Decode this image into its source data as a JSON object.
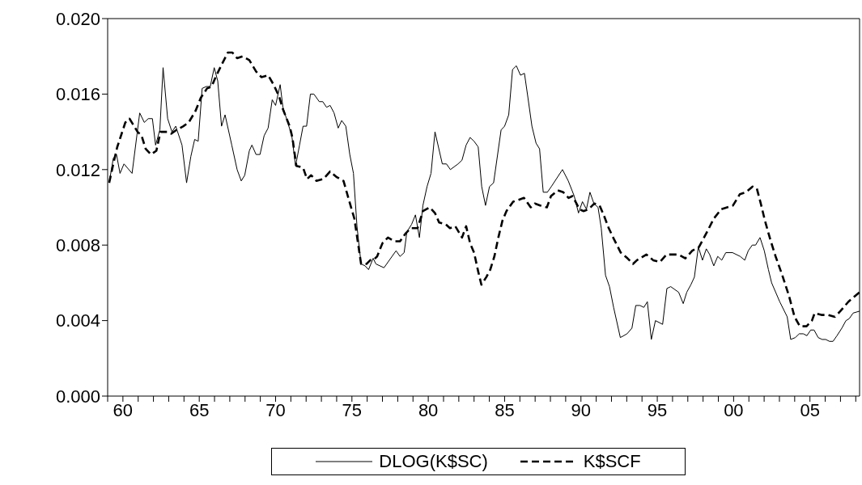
{
  "chart_data": {
    "type": "line",
    "xlim": [
      1959,
      2008.25
    ],
    "xticks": [
      {
        "value": 1959,
        "label": null
      },
      {
        "value": 1960,
        "label": "60"
      },
      {
        "value": 1961,
        "label": null
      },
      {
        "value": 1962,
        "label": null
      },
      {
        "value": 1963,
        "label": null
      },
      {
        "value": 1964,
        "label": null
      },
      {
        "value": 1965,
        "label": "65"
      },
      {
        "value": 1966,
        "label": null
      },
      {
        "value": 1967,
        "label": null
      },
      {
        "value": 1968,
        "label": null
      },
      {
        "value": 1969,
        "label": null
      },
      {
        "value": 1970,
        "label": "70"
      },
      {
        "value": 1971,
        "label": null
      },
      {
        "value": 1972,
        "label": null
      },
      {
        "value": 1973,
        "label": null
      },
      {
        "value": 1974,
        "label": null
      },
      {
        "value": 1975,
        "label": "75"
      },
      {
        "value": 1976,
        "label": null
      },
      {
        "value": 1977,
        "label": null
      },
      {
        "value": 1978,
        "label": null
      },
      {
        "value": 1979,
        "label": null
      },
      {
        "value": 1980,
        "label": "80"
      },
      {
        "value": 1981,
        "label": null
      },
      {
        "value": 1982,
        "label": null
      },
      {
        "value": 1983,
        "label": null
      },
      {
        "value": 1984,
        "label": null
      },
      {
        "value": 1985,
        "label": "85"
      },
      {
        "value": 1986,
        "label": null
      },
      {
        "value": 1987,
        "label": null
      },
      {
        "value": 1988,
        "label": null
      },
      {
        "value": 1989,
        "label": null
      },
      {
        "value": 1990,
        "label": "90"
      },
      {
        "value": 1991,
        "label": null
      },
      {
        "value": 1992,
        "label": null
      },
      {
        "value": 1993,
        "label": null
      },
      {
        "value": 1994,
        "label": null
      },
      {
        "value": 1995,
        "label": "95"
      },
      {
        "value": 1996,
        "label": null
      },
      {
        "value": 1997,
        "label": null
      },
      {
        "value": 1998,
        "label": null
      },
      {
        "value": 1999,
        "label": null
      },
      {
        "value": 2000,
        "label": "00"
      },
      {
        "value": 2001,
        "label": null
      },
      {
        "value": 2002,
        "label": null
      },
      {
        "value": 2003,
        "label": null
      },
      {
        "value": 2004,
        "label": null
      },
      {
        "value": 2005,
        "label": "05"
      },
      {
        "value": 2006,
        "label": null
      },
      {
        "value": 2007,
        "label": null
      },
      {
        "value": 2008,
        "label": null
      }
    ],
    "ylim": [
      0,
      0.02
    ],
    "yticks": [
      {
        "value": 0,
        "label": "0.000"
      },
      {
        "value": 0.004,
        "label": "0.004"
      },
      {
        "value": 0.008,
        "label": "0.008"
      },
      {
        "value": 0.012,
        "label": "0.012"
      },
      {
        "value": 0.016,
        "label": "0.016"
      },
      {
        "value": 0.02,
        "label": "0.020"
      }
    ],
    "legend": "bottom",
    "marker": "none",
    "series": [
      {
        "name": "DLOG(K$SC)",
        "color": "#000000",
        "line_style": "solid",
        "x": [
          1959.1,
          1959.37,
          1959.58,
          1959.81,
          1960.07,
          1960.6,
          1961.1,
          1961.4,
          1961.66,
          1961.93,
          1962.14,
          1962.42,
          1962.63,
          1962.93,
          1963.21,
          1963.46,
          1963.87,
          1964.17,
          1964.45,
          1964.7,
          1964.93,
          1965.19,
          1965.46,
          1965.72,
          1965.98,
          1966.21,
          1966.46,
          1966.69,
          1967.13,
          1967.48,
          1967.75,
          1967.98,
          1968.28,
          1968.45,
          1968.72,
          1968.98,
          1969.25,
          1969.51,
          1969.78,
          1970.0,
          1970.3,
          1970.48,
          1970.83,
          1971.06,
          1971.31,
          1971.57,
          1971.8,
          1972.03,
          1972.28,
          1972.51,
          1972.86,
          1973.09,
          1973.34,
          1973.57,
          1973.83,
          1974.1,
          1974.33,
          1974.6,
          1974.86,
          1975.1,
          1975.33,
          1975.6,
          1975.86,
          1976.09,
          1976.39,
          1976.57,
          1977.1,
          1977.89,
          1978.15,
          1978.42,
          1978.6,
          1978.91,
          1979.16,
          1979.42,
          1979.65,
          1979.92,
          1980.18,
          1980.44,
          1980.92,
          1981.19,
          1981.45,
          1981.95,
          1982.21,
          1982.48,
          1982.74,
          1983.0,
          1983.27,
          1983.5,
          1983.75,
          1984.01,
          1984.28,
          1984.77,
          1985.0,
          1985.27,
          1985.52,
          1985.77,
          1986.04,
          1986.3,
          1986.53,
          1986.79,
          1987.06,
          1987.29,
          1987.53,
          1987.8,
          1988.06,
          1988.79,
          1989.17,
          1989.56,
          1989.84,
          1990.1,
          1990.36,
          1990.59,
          1990.85,
          1991.12,
          1991.33,
          1991.61,
          1991.87,
          1992.14,
          1992.58,
          1993.02,
          1993.34,
          1993.59,
          1993.87,
          1994.12,
          1994.35,
          1994.61,
          1994.88,
          1995.35,
          1995.63,
          1995.88,
          1996.4,
          1996.7,
          1996.93,
          1997.2,
          1997.43,
          1997.69,
          1997.96,
          1998.21,
          1998.43,
          1998.7,
          1998.96,
          1999.22,
          1999.49,
          1999.93,
          2000.43,
          2000.73,
          2000.96,
          2001.22,
          2001.44,
          2001.73,
          2002.01,
          2002.28,
          2002.49,
          2003.02,
          2003.51,
          2003.74,
          2004.04,
          2004.3,
          2004.57,
          2004.8,
          2005.05,
          2005.27,
          2005.54,
          2005.8,
          2006.03,
          2006.28,
          2006.51,
          2006.77,
          2007.09,
          2007.36,
          2007.57,
          2007.83,
          2008.25
        ],
        "values": [
          0.0113,
          0.0126,
          0.0128,
          0.0118,
          0.0123,
          0.0118,
          0.015,
          0.0145,
          0.0147,
          0.0147,
          0.0133,
          0.0141,
          0.0174,
          0.0147,
          0.014,
          0.0143,
          0.0133,
          0.0113,
          0.0127,
          0.0136,
          0.0135,
          0.0163,
          0.0164,
          0.0164,
          0.0174,
          0.0167,
          0.0143,
          0.0149,
          0.0133,
          0.012,
          0.0114,
          0.0117,
          0.013,
          0.0133,
          0.0128,
          0.0128,
          0.0138,
          0.0142,
          0.0157,
          0.0154,
          0.0165,
          0.0153,
          0.0144,
          0.0138,
          0.0122,
          0.0133,
          0.0143,
          0.0143,
          0.016,
          0.016,
          0.0156,
          0.0156,
          0.0153,
          0.0154,
          0.015,
          0.0142,
          0.0146,
          0.0143,
          0.0128,
          0.0118,
          0.009,
          0.007,
          0.0069,
          0.0067,
          0.0073,
          0.007,
          0.0068,
          0.0077,
          0.0074,
          0.0076,
          0.0087,
          0.0091,
          0.0096,
          0.0084,
          0.0101,
          0.0111,
          0.0118,
          0.014,
          0.0123,
          0.0123,
          0.012,
          0.0123,
          0.0125,
          0.0133,
          0.0137,
          0.0135,
          0.0132,
          0.0111,
          0.0101,
          0.0111,
          0.0113,
          0.0141,
          0.0143,
          0.0149,
          0.0173,
          0.0175,
          0.017,
          0.0171,
          0.0158,
          0.0143,
          0.0134,
          0.0131,
          0.0108,
          0.0108,
          0.0111,
          0.012,
          0.0114,
          0.0106,
          0.0097,
          0.0103,
          0.0099,
          0.0108,
          0.0102,
          0.01,
          0.0089,
          0.0064,
          0.0058,
          0.0047,
          0.0031,
          0.0033,
          0.0036,
          0.0048,
          0.0048,
          0.0047,
          0.005,
          0.003,
          0.004,
          0.0038,
          0.0057,
          0.0058,
          0.0055,
          0.0049,
          0.0055,
          0.0059,
          0.0063,
          0.0079,
          0.0072,
          0.0078,
          0.0075,
          0.0069,
          0.0074,
          0.0072,
          0.0076,
          0.0076,
          0.0074,
          0.0072,
          0.0077,
          0.008,
          0.008,
          0.0084,
          0.0077,
          0.0067,
          0.006,
          0.005,
          0.0042,
          0.003,
          0.0031,
          0.0033,
          0.0033,
          0.0032,
          0.0035,
          0.0035,
          0.0031,
          0.003,
          0.003,
          0.0029,
          0.0029,
          0.0032,
          0.0036,
          0.004,
          0.0041,
          0.0044,
          0.0045
        ]
      },
      {
        "name": "K$SCF",
        "color": "#000000",
        "line_style": "dashed",
        "x": [
          1959.1,
          1959.37,
          1959.63,
          1960.16,
          1960.43,
          1960.96,
          1961.22,
          1961.49,
          1961.84,
          1962.19,
          1962.46,
          1962.9,
          1963.16,
          1963.51,
          1963.96,
          1964.31,
          1964.75,
          1965.1,
          1965.51,
          1965.81,
          1966.07,
          1966.43,
          1966.87,
          1967.17,
          1967.48,
          1967.84,
          1968.28,
          1968.72,
          1969.07,
          1969.51,
          1969.87,
          1970.22,
          1970.48,
          1970.92,
          1971.1,
          1971.36,
          1971.8,
          1972.06,
          1972.33,
          1972.68,
          1973.13,
          1973.57,
          1974.01,
          1974.45,
          1974.8,
          1975.16,
          1975.6,
          1975.95,
          1976.2,
          1976.39,
          1976.65,
          1977.0,
          1977.36,
          1977.8,
          1978.15,
          1978.5,
          1978.86,
          1979.3,
          1979.65,
          1980.1,
          1980.44,
          1980.71,
          1981.15,
          1981.42,
          1981.77,
          1982.21,
          1982.48,
          1982.74,
          1983.0,
          1983.27,
          1983.48,
          1983.8,
          1984.06,
          1984.33,
          1984.59,
          1984.86,
          1985.12,
          1985.56,
          1985.92,
          1986.27,
          1986.71,
          1986.98,
          1987.33,
          1987.77,
          1988.04,
          1988.48,
          1988.84,
          1989.19,
          1989.45,
          1989.9,
          1990.16,
          1990.51,
          1990.87,
          1991.22,
          1991.49,
          1991.82,
          1992.17,
          1992.61,
          1993.05,
          1993.41,
          1993.67,
          1994.29,
          1994.73,
          1995.17,
          1995.61,
          1995.96,
          1996.4,
          1996.84,
          1997.29,
          1997.73,
          1998.26,
          1998.7,
          1999.19,
          1999.58,
          1999.96,
          2000.41,
          2000.81,
          2001.25,
          2001.52,
          2001.78,
          2002.05,
          2002.4,
          2002.75,
          2003.19,
          2003.63,
          2003.99,
          2004.34,
          2004.78,
          2005.13,
          2005.31,
          2005.75,
          2006.19,
          2006.63,
          2006.99,
          2007.52,
          2008.25
        ],
        "values": [
          0.0113,
          0.0123,
          0.0132,
          0.0145,
          0.0147,
          0.014,
          0.0138,
          0.0131,
          0.0128,
          0.013,
          0.014,
          0.014,
          0.0139,
          0.0141,
          0.0143,
          0.0145,
          0.0151,
          0.0158,
          0.0163,
          0.0164,
          0.0169,
          0.0175,
          0.0182,
          0.0182,
          0.0179,
          0.018,
          0.0178,
          0.0172,
          0.0169,
          0.017,
          0.0165,
          0.0159,
          0.0152,
          0.0143,
          0.0137,
          0.0122,
          0.0121,
          0.0115,
          0.0117,
          0.0114,
          0.0115,
          0.0119,
          0.0116,
          0.0114,
          0.0104,
          0.0094,
          0.007,
          0.007,
          0.0072,
          0.0072,
          0.0074,
          0.0081,
          0.0084,
          0.0082,
          0.0082,
          0.0086,
          0.0089,
          0.0089,
          0.0098,
          0.01,
          0.0097,
          0.0092,
          0.0091,
          0.0089,
          0.009,
          0.0084,
          0.009,
          0.0081,
          0.0076,
          0.0066,
          0.0059,
          0.0063,
          0.0067,
          0.0074,
          0.0084,
          0.0093,
          0.0098,
          0.0103,
          0.0104,
          0.0105,
          0.01,
          0.0102,
          0.0101,
          0.01,
          0.0106,
          0.0109,
          0.0108,
          0.0105,
          0.0106,
          0.0099,
          0.0098,
          0.0099,
          0.0102,
          0.0101,
          0.0096,
          0.0089,
          0.0083,
          0.0076,
          0.0073,
          0.007,
          0.0072,
          0.0075,
          0.0072,
          0.0071,
          0.0075,
          0.0075,
          0.0075,
          0.0073,
          0.0077,
          0.0079,
          0.0087,
          0.0094,
          0.0099,
          0.01,
          0.0101,
          0.0107,
          0.0108,
          0.0111,
          0.011,
          0.0102,
          0.0093,
          0.0083,
          0.0074,
          0.0064,
          0.0053,
          0.0042,
          0.0037,
          0.0037,
          0.004,
          0.0044,
          0.0043,
          0.0043,
          0.0042,
          0.0045,
          0.005,
          0.0055
        ]
      }
    ]
  }
}
